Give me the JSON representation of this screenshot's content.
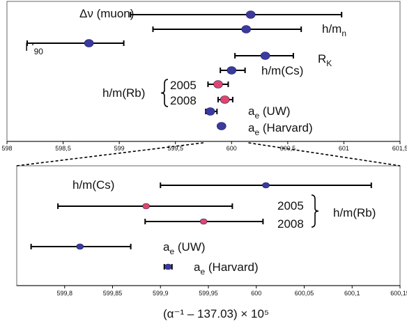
{
  "colors": {
    "blue": "#3a3aa0",
    "pink": "#e0456e",
    "line": "#000000",
    "frame": "#808080"
  },
  "chart_data": [
    {
      "type": "scatter",
      "panel": "top",
      "xlim": [
        598,
        601.5
      ],
      "ticks": [
        "598",
        "598,5",
        "599",
        "599,5",
        "600",
        "600,5",
        "601",
        "601,5"
      ],
      "tick_values": [
        598,
        598.5,
        599,
        599.5,
        600,
        600.5,
        601,
        601.5
      ],
      "points": [
        {
          "label": "Δν (muon)",
          "sub": "",
          "x": 600.17,
          "xerr_low": 599.1,
          "xerr_high": 600.98,
          "color": "blue"
        },
        {
          "label": "h/m",
          "sub": "n",
          "x": 600.13,
          "xerr_low": 599.3,
          "xerr_high": 600.62,
          "color": "blue"
        },
        {
          "label": "Γ'",
          "sub": "90",
          "x": 598.73,
          "xerr_low": 598.18,
          "xerr_high": 599.04,
          "color": "blue"
        },
        {
          "label": "R",
          "sub": "K",
          "x": 600.3,
          "xerr_low": 600.03,
          "xerr_high": 600.55,
          "color": "blue"
        },
        {
          "label": "h/m(Cs)",
          "sub": "",
          "x": 600.0,
          "xerr_low": 599.9,
          "xerr_high": 600.12,
          "color": "blue"
        },
        {
          "label": "2005",
          "sub": "",
          "x": 599.88,
          "xerr_low": 599.79,
          "xerr_high": 599.97,
          "color": "pink"
        },
        {
          "label": "2008",
          "sub": "",
          "x": 599.94,
          "xerr_low": 599.88,
          "xerr_high": 600.01,
          "color": "pink"
        },
        {
          "label": "a",
          "sub": "e",
          "suffix": " (UW)",
          "x": 599.81,
          "xerr_low": 599.77,
          "xerr_high": 599.87,
          "color": "blue"
        },
        {
          "label": "a",
          "sub": "e",
          "suffix": " (Harvard)",
          "x": 599.91,
          "xerr_low": 599.9,
          "xerr_high": 599.92,
          "color": "blue"
        }
      ],
      "group_label": "h/m(Rb)"
    },
    {
      "type": "scatter",
      "panel": "bottom",
      "xlim": [
        599.75,
        600.15
      ],
      "ticks": [
        "599,8",
        "599,85",
        "599,9",
        "599,95",
        "600",
        "600,05",
        "600,1",
        "600,15"
      ],
      "tick_values": [
        599.8,
        599.85,
        599.9,
        599.95,
        600,
        600.05,
        600.1,
        600.15
      ],
      "xlabel": "(α⁻¹ – 137.03) × 10⁵",
      "points": [
        {
          "label": "h/m(Cs)",
          "sub": "",
          "x": 600.01,
          "xerr_low": 599.9,
          "xerr_high": 600.12,
          "color": "blue"
        },
        {
          "label": "2005",
          "sub": "",
          "x": 599.885,
          "xerr_low": 599.793,
          "xerr_high": 599.975,
          "color": "pink"
        },
        {
          "label": "2008",
          "sub": "",
          "x": 599.945,
          "xerr_low": 599.884,
          "xerr_high": 600.007,
          "color": "pink"
        },
        {
          "label": "a",
          "sub": "e",
          "suffix": " (UW)",
          "x": 599.816,
          "xerr_low": 599.765,
          "xerr_high": 599.869,
          "color": "blue"
        },
        {
          "label": "a",
          "sub": "e",
          "suffix": " (Harvard)",
          "x": 599.908,
          "xerr_low": 599.904,
          "xerr_high": 599.912,
          "color": "blue"
        }
      ],
      "group_label": "h/m(Rb)"
    }
  ]
}
